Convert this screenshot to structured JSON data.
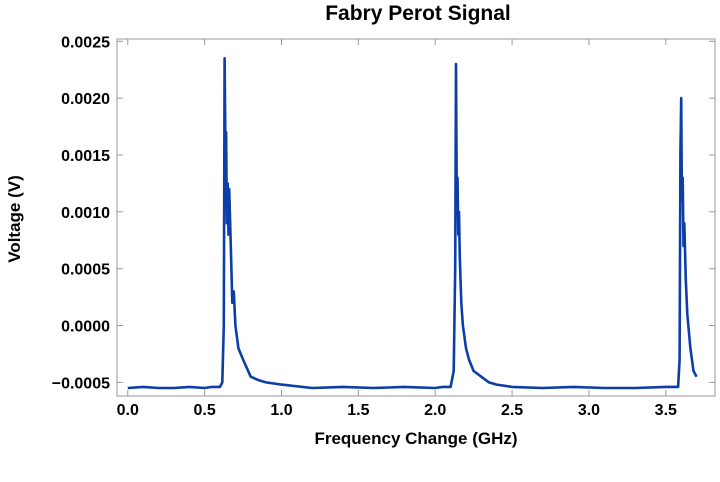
{
  "chart_data": {
    "type": "line",
    "title": "Fabry Perot Signal",
    "xlabel": "Frequency Change (GHz)",
    "ylabel": "Voltage (V)",
    "xlim": [
      -0.07,
      3.82
    ],
    "ylim": [
      -0.00062,
      0.00252
    ],
    "xticks": [
      "0.0",
      "0.5",
      "1.0",
      "1.5",
      "2.0",
      "2.5",
      "3.0",
      "3.5"
    ],
    "yticks": [
      "−0.0005",
      "0.0000",
      "0.0005",
      "0.0010",
      "0.0015",
      "0.0020",
      "0.0025"
    ],
    "grid": false,
    "color": "#0d3ea8",
    "series": [
      {
        "x": [
          0.0,
          0.1,
          0.2,
          0.3,
          0.4,
          0.5,
          0.55,
          0.6,
          0.615,
          0.625,
          0.63,
          0.635,
          0.64,
          0.645,
          0.65,
          0.655,
          0.66,
          0.67,
          0.68,
          0.69,
          0.7,
          0.72,
          0.75,
          0.8,
          0.85,
          0.9,
          1.0,
          1.2,
          1.4,
          1.6,
          1.8,
          2.0,
          2.05,
          2.1,
          2.12,
          2.13,
          2.135,
          2.14,
          2.145,
          2.15,
          2.155,
          2.16,
          2.17,
          2.18,
          2.2,
          2.22,
          2.25,
          2.3,
          2.35,
          2.4,
          2.5,
          2.7,
          2.9,
          3.1,
          3.3,
          3.5,
          3.55,
          3.58,
          3.59,
          3.595,
          3.6,
          3.605,
          3.61,
          3.615,
          3.62,
          3.63,
          3.64,
          3.66,
          3.68,
          3.7
        ],
        "y": [
          -0.00055,
          -0.00054,
          -0.00055,
          -0.00055,
          -0.00054,
          -0.00055,
          -0.00054,
          -0.00054,
          -0.0005,
          0.0,
          0.00235,
          0.0016,
          0.0017,
          0.0009,
          0.00125,
          0.0008,
          0.0012,
          0.0007,
          0.0002,
          0.0003,
          0.0,
          -0.0002,
          -0.0003,
          -0.00045,
          -0.00048,
          -0.0005,
          -0.00052,
          -0.00055,
          -0.00054,
          -0.00055,
          -0.00054,
          -0.00055,
          -0.00054,
          -0.00054,
          -0.0004,
          0.0005,
          0.0023,
          0.0012,
          0.0013,
          0.0008,
          0.001,
          0.0006,
          0.0002,
          0.0,
          -0.0002,
          -0.0003,
          -0.0004,
          -0.00045,
          -0.0005,
          -0.00052,
          -0.00054,
          -0.00055,
          -0.00054,
          -0.00055,
          -0.00055,
          -0.00054,
          -0.00054,
          -0.00054,
          -0.0003,
          0.0015,
          0.002,
          0.0011,
          0.0013,
          0.0007,
          0.0009,
          0.0004,
          0.0001,
          -0.0002,
          -0.0004,
          -0.00045
        ]
      }
    ]
  }
}
